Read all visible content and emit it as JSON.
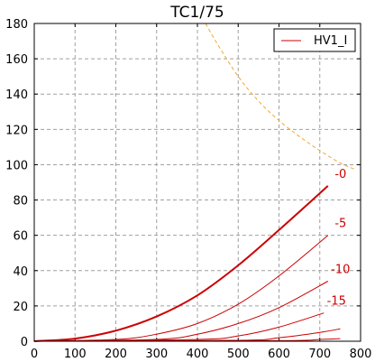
{
  "chart_data": {
    "type": "line",
    "title": "TC1/75",
    "xlabel": "",
    "ylabel": "",
    "xlim": [
      0,
      800
    ],
    "ylim": [
      0,
      180
    ],
    "xticks": [
      0,
      100,
      200,
      300,
      400,
      500,
      600,
      700,
      800
    ],
    "yticks": [
      0,
      20,
      40,
      60,
      80,
      100,
      120,
      140,
      160,
      180
    ],
    "grid": true,
    "legend": {
      "position": "top-right",
      "entries": [
        "HV1_I"
      ]
    },
    "series": [
      {
        "name": "HV1_I",
        "label": "-0",
        "color": "#cc0000",
        "style": "solid-thick",
        "x": [
          0,
          100,
          200,
          300,
          400,
          500,
          600,
          720
        ],
        "y": [
          0,
          1.5,
          6,
          14,
          26,
          43,
          63,
          88
        ]
      },
      {
        "label": "-5",
        "color": "#cc0000",
        "style": "solid",
        "x": [
          0,
          200,
          300,
          400,
          500,
          600,
          720
        ],
        "y": [
          0,
          1,
          4,
          10,
          21,
          37,
          60
        ]
      },
      {
        "label": "-10",
        "color": "#cc0000",
        "style": "solid",
        "x": [
          0,
          300,
          400,
          500,
          600,
          720
        ],
        "y": [
          0,
          1,
          4,
          10,
          19,
          34
        ]
      },
      {
        "label": "-15",
        "color": "#cc0000",
        "style": "solid",
        "x": [
          0,
          400,
          500,
          600,
          710
        ],
        "y": [
          0,
          1,
          3,
          8,
          16
        ]
      },
      {
        "label": "",
        "color": "#cc0000",
        "style": "solid",
        "x": [
          0,
          500,
          600,
          700,
          750
        ],
        "y": [
          0,
          0.5,
          2,
          5,
          7
        ]
      },
      {
        "label": "",
        "color": "#cc0000",
        "style": "solid",
        "x": [
          0,
          600,
          700,
          750
        ],
        "y": [
          0,
          0.3,
          1,
          1.5
        ]
      },
      {
        "label": "",
        "color": "#f0a830",
        "style": "dashed",
        "x": [
          420,
          450,
          500,
          550,
          600,
          650,
          700,
          750,
          790
        ],
        "y": [
          180,
          168,
          150,
          136,
          125,
          116,
          108,
          101,
          97
        ]
      }
    ]
  }
}
